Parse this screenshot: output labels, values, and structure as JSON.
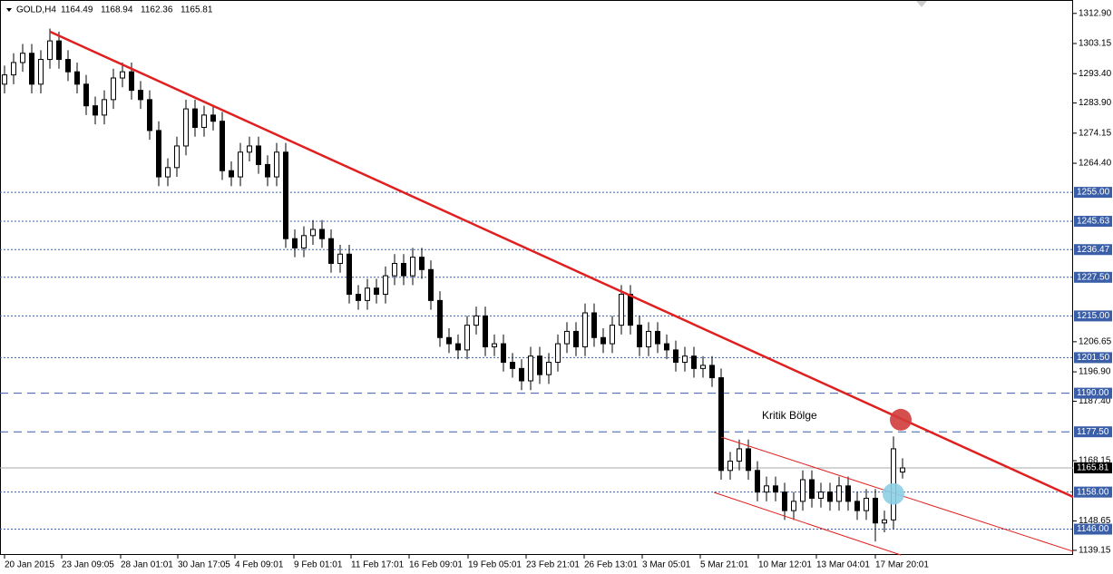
{
  "chart_data": {
    "type": "candlestick",
    "symbol": "GOLD,H4",
    "annotation": "Kritik Bölge",
    "xlim": [
      -0.5,
      117.8
    ],
    "ylim": [
      1137.65,
      1316.65
    ],
    "xticks": [
      {
        "value": 0,
        "label": "20 Jan 2015"
      },
      {
        "value": 6.3,
        "label": "23 Jan 09:05"
      },
      {
        "value": 12.8,
        "label": "28 Jan 01:01"
      },
      {
        "value": 19.1,
        "label": "30 Jan 17:05"
      },
      {
        "value": 25.4,
        "label": "4 Feb 09:01"
      },
      {
        "value": 31.9,
        "label": "9 Feb 01:01"
      },
      {
        "value": 38.2,
        "label": "11 Feb 17:01"
      },
      {
        "value": 44.6,
        "label": "16 Feb 09:01"
      },
      {
        "value": 51.1,
        "label": "19 Feb 05:01"
      },
      {
        "value": 57.5,
        "label": "23 Feb 21:01"
      },
      {
        "value": 63.9,
        "label": "26 Feb 13:01"
      },
      {
        "value": 70.3,
        "label": "3 Mar 05:01"
      },
      {
        "value": 76.7,
        "label": "5 Mar 21:01"
      },
      {
        "value": 83.1,
        "label": "10 Mar 12:01"
      },
      {
        "value": 89.5,
        "label": "13 Mar 04:01"
      },
      {
        "value": 96,
        "label": "17 Mar 20:01"
      }
    ],
    "yticks": [
      {
        "value": 1312.9,
        "label": "1312.90"
      },
      1303.15,
      {
        "value": 1293.4,
        "label": "1293.40"
      },
      {
        "value": 1283.9,
        "label": "1283.90"
      },
      1274.15,
      {
        "value": 1264.4,
        "label": "1264.40"
      },
      1206.65,
      {
        "value": 1196.9,
        "label": "1196.90"
      },
      {
        "value": 1187.4,
        "label": "1187.40"
      },
      1168.15,
      1148.65,
      1139.15
    ],
    "levels": [
      {
        "value": 1255,
        "label": "1255.00",
        "style": "dotted"
      },
      {
        "value": 1245.63,
        "label": "1245.63",
        "style": "dotted"
      },
      {
        "value": 1236.47,
        "label": "1236.47",
        "style": "dotted"
      },
      {
        "value": 1227.5,
        "label": "1227.50",
        "style": "dotted"
      },
      {
        "value": 1215,
        "label": "1215.00",
        "style": "dotted"
      },
      {
        "value": 1201.5,
        "label": "1201.50",
        "style": "dotted"
      },
      {
        "value": 1190,
        "label": "1190.00",
        "style": "dashed"
      },
      {
        "value": 1177.5,
        "label": "1177.50",
        "style": "dashed"
      },
      {
        "value": 1158,
        "label": "1158.00",
        "style": "dotted"
      },
      {
        "value": 1146,
        "label": "1146.00",
        "style": "dotted"
      }
    ],
    "level_color": "#3a5fa8",
    "open": [
      1290,
      1293,
      1297,
      1300,
      1290,
      1298,
      1304,
      1298,
      1294,
      1290,
      1283,
      1280,
      1285,
      1292,
      1294,
      1288,
      1285,
      1275,
      1260,
      1263,
      1270,
      1282,
      1276,
      1280,
      1278,
      1262,
      1260,
      1268,
      1270,
      1264,
      1260,
      1268,
      1240,
      1237,
      1241,
      1243,
      1240,
      1232,
      1235,
      1222,
      1220,
      1224,
      1222,
      1228,
      1232,
      1228,
      1234,
      1230,
      1220,
      1208,
      1206,
      1204,
      1212,
      1215,
      1205,
      1206,
      1200,
      1198,
      1194,
      1202,
      1196,
      1200,
      1206,
      1210,
      1205,
      1216,
      1208,
      1206,
      1212,
      1222,
      1212,
      1205,
      1210,
      1206,
      1204,
      1200,
      1202,
      1198,
      1199,
      1195,
      1165,
      1168,
      1172,
      1165,
      1158,
      1160,
      1158,
      1152,
      1155,
      1162,
      1156,
      1158,
      1155,
      1160,
      1155,
      1152,
      1156,
      1148,
      1149,
      1164.49
    ],
    "high": [
      1296,
      1300,
      1303,
      1303,
      1301,
      1308,
      1307,
      1301,
      1297,
      1293,
      1286,
      1288,
      1295,
      1297,
      1297,
      1291,
      1288,
      1278,
      1266,
      1273,
      1285,
      1285,
      1283,
      1283,
      1281,
      1265,
      1271,
      1273,
      1273,
      1267,
      1271,
      1271,
      1243,
      1244,
      1246,
      1246,
      1243,
      1238,
      1238,
      1225,
      1227,
      1227,
      1231,
      1235,
      1235,
      1237,
      1237,
      1233,
      1223,
      1211,
      1209,
      1215,
      1218,
      1218,
      1209,
      1209,
      1203,
      1201,
      1205,
      1205,
      1203,
      1209,
      1213,
      1213,
      1219,
      1219,
      1211,
      1215,
      1225,
      1225,
      1215,
      1213,
      1213,
      1209,
      1207,
      1205,
      1205,
      1202,
      1202,
      1198,
      1171,
      1175,
      1175,
      1168,
      1163,
      1163,
      1161,
      1158,
      1165,
      1165,
      1161,
      1161,
      1163,
      1163,
      1158,
      1159,
      1159,
      1152,
      1176,
      1168.94
    ],
    "low": [
      1287,
      1290,
      1294,
      1287,
      1287,
      1295,
      1295,
      1291,
      1287,
      1280,
      1277,
      1277,
      1282,
      1289,
      1285,
      1282,
      1272,
      1257,
      1257,
      1260,
      1267,
      1273,
      1273,
      1275,
      1259,
      1257,
      1257,
      1265,
      1261,
      1257,
      1257,
      1237,
      1234,
      1234,
      1238,
      1237,
      1229,
      1229,
      1219,
      1217,
      1217,
      1219,
      1219,
      1225,
      1225,
      1225,
      1227,
      1217,
      1205,
      1203,
      1201,
      1201,
      1209,
      1202,
      1202,
      1197,
      1195,
      1191,
      1191,
      1193,
      1193,
      1197,
      1203,
      1202,
      1202,
      1205,
      1203,
      1203,
      1209,
      1209,
      1202,
      1202,
      1203,
      1201,
      1197,
      1197,
      1195,
      1195,
      1192,
      1162,
      1162,
      1165,
      1162,
      1155,
      1155,
      1155,
      1149,
      1149,
      1152,
      1153,
      1153,
      1152,
      1152,
      1152,
      1149,
      1149,
      1142,
      1145,
      1146,
      1162.36
    ],
    "close": [
      1293,
      1297,
      1300,
      1290,
      1298,
      1304,
      1298,
      1294,
      1290,
      1283,
      1280,
      1285,
      1292,
      1294,
      1288,
      1285,
      1275,
      1260,
      1263,
      1270,
      1282,
      1276,
      1280,
      1278,
      1262,
      1260,
      1268,
      1270,
      1264,
      1260,
      1268,
      1240,
      1237,
      1241,
      1243,
      1240,
      1232,
      1235,
      1222,
      1220,
      1224,
      1222,
      1228,
      1232,
      1228,
      1234,
      1230,
      1220,
      1208,
      1206,
      1204,
      1212,
      1215,
      1205,
      1206,
      1200,
      1198,
      1194,
      1202,
      1196,
      1200,
      1206,
      1210,
      1205,
      1216,
      1208,
      1206,
      1212,
      1222,
      1212,
      1205,
      1210,
      1206,
      1204,
      1200,
      1202,
      1198,
      1199,
      1195,
      1165,
      1168,
      1172,
      1165,
      1158,
      1160,
      1158,
      1152,
      1155,
      1162,
      1156,
      1158,
      1155,
      1160,
      1155,
      1152,
      1156,
      1148,
      1149,
      1172,
      1165.81
    ],
    "trendlines": [
      {
        "x": [
          5,
          117.8
        ],
        "y": [
          1307,
          1156.44
        ],
        "color": "#e02020",
        "width": 2.5
      },
      {
        "x": [
          79,
          117.8
        ],
        "y": [
          1175.8,
          1138.8
        ],
        "color": "#e02020",
        "width": 1
      },
      {
        "x": [
          78.2,
          98.8
        ],
        "y": [
          1157.9,
          1137.65
        ],
        "color": "#e02020",
        "width": 1
      }
    ],
    "markers": [
      {
        "x": 98.8,
        "y": 1181.4,
        "color": "#d23c3c"
      },
      {
        "x": 98,
        "y": 1157.4,
        "color": "#8ccfe6"
      }
    ]
  }
}
